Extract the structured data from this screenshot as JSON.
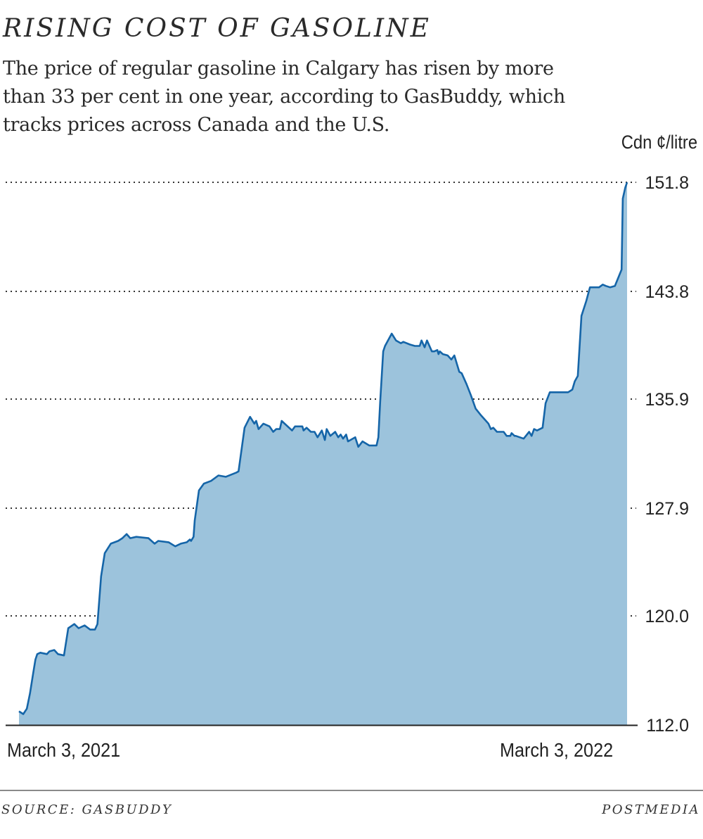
{
  "header": {
    "title": "RISING COST OF GASOLINE",
    "subtitle": "The price of regular gasoline in Calgary has risen by more than 33 per cent in one year, according to GasBuddy, which tracks prices across Canada and the U.S.",
    "unit_label": "Cdn ¢/litre"
  },
  "footer": {
    "source": "SOURCE: GASBUDDY",
    "credit": "POSTMEDIA"
  },
  "colors": {
    "line": "#1565a8",
    "fill": "#9cc3dc",
    "gridline": "#333333",
    "axis": "#222222",
    "text": "#222222"
  },
  "chart_data": {
    "type": "area",
    "title": "RISING COST OF GASOLINE",
    "subtitle": "The price of regular gasoline in Calgary has risen by more than 33 per cent in one year, according to GasBuddy, which tracks prices across Canada and the U.S.",
    "xlabel": "",
    "ylabel": "Cdn ¢/litre",
    "x_tick_labels": [
      "March 3, 2021",
      "March 3, 2022"
    ],
    "x_range": [
      "March 3, 2021",
      "March 3, 2022"
    ],
    "y_ticks": [
      112.0,
      120.0,
      127.9,
      135.9,
      143.8,
      151.8
    ],
    "y_tick_labels": [
      "112.0",
      "120.0",
      "127.9",
      "135.9",
      "143.8",
      "151.8"
    ],
    "ylim": [
      112.0,
      151.8
    ],
    "grid": "horizontal dotted",
    "legend": "none",
    "x_note": "x is fraction of the year from March 3, 2021 (0) to March 3, 2022 (1)",
    "series": [
      {
        "name": "Regular gasoline, Calgary",
        "points": [
          [
            0.0,
            113.0
          ],
          [
            0.007,
            112.8
          ],
          [
            0.013,
            113.2
          ],
          [
            0.018,
            114.3
          ],
          [
            0.023,
            115.7
          ],
          [
            0.027,
            116.8
          ],
          [
            0.03,
            117.2
          ],
          [
            0.035,
            117.3
          ],
          [
            0.046,
            117.2
          ],
          [
            0.05,
            117.4
          ],
          [
            0.058,
            117.5
          ],
          [
            0.064,
            117.2
          ],
          [
            0.074,
            117.1
          ],
          [
            0.081,
            119.1
          ],
          [
            0.091,
            119.4
          ],
          [
            0.098,
            119.1
          ],
          [
            0.108,
            119.3
          ],
          [
            0.117,
            119.0
          ],
          [
            0.125,
            119.0
          ],
          [
            0.129,
            119.4
          ],
          [
            0.135,
            122.9
          ],
          [
            0.141,
            124.6
          ],
          [
            0.151,
            125.3
          ],
          [
            0.163,
            125.5
          ],
          [
            0.17,
            125.7
          ],
          [
            0.177,
            126.0
          ],
          [
            0.183,
            125.7
          ],
          [
            0.193,
            125.8
          ],
          [
            0.213,
            125.7
          ],
          [
            0.223,
            125.3
          ],
          [
            0.229,
            125.5
          ],
          [
            0.246,
            125.4
          ],
          [
            0.257,
            125.1
          ],
          [
            0.266,
            125.3
          ],
          [
            0.276,
            125.4
          ],
          [
            0.281,
            125.6
          ],
          [
            0.283,
            125.5
          ],
          [
            0.287,
            125.8
          ],
          [
            0.289,
            127.0
          ],
          [
            0.296,
            129.2
          ],
          [
            0.304,
            129.7
          ],
          [
            0.316,
            129.9
          ],
          [
            0.328,
            130.3
          ],
          [
            0.34,
            130.2
          ],
          [
            0.357,
            130.5
          ],
          [
            0.361,
            130.6
          ],
          [
            0.371,
            133.8
          ],
          [
            0.38,
            134.6
          ],
          [
            0.387,
            134.1
          ],
          [
            0.39,
            134.3
          ],
          [
            0.394,
            133.7
          ],
          [
            0.402,
            134.1
          ],
          [
            0.412,
            133.9
          ],
          [
            0.418,
            133.5
          ],
          [
            0.423,
            133.7
          ],
          [
            0.429,
            133.7
          ],
          [
            0.432,
            134.3
          ],
          [
            0.449,
            133.6
          ],
          [
            0.454,
            133.9
          ],
          [
            0.466,
            133.9
          ],
          [
            0.468,
            133.6
          ],
          [
            0.473,
            133.8
          ],
          [
            0.48,
            133.5
          ],
          [
            0.486,
            133.5
          ],
          [
            0.491,
            133.1
          ],
          [
            0.498,
            133.6
          ],
          [
            0.503,
            132.9
          ],
          [
            0.506,
            133.7
          ],
          [
            0.512,
            133.2
          ],
          [
            0.52,
            133.5
          ],
          [
            0.525,
            133.1
          ],
          [
            0.529,
            133.3
          ],
          [
            0.533,
            133.0
          ],
          [
            0.538,
            133.3
          ],
          [
            0.541,
            132.8
          ],
          [
            0.553,
            133.1
          ],
          [
            0.558,
            132.4
          ],
          [
            0.565,
            132.8
          ],
          [
            0.576,
            132.5
          ],
          [
            0.588,
            132.5
          ],
          [
            0.591,
            133.1
          ],
          [
            0.594,
            135.7
          ],
          [
            0.599,
            139.4
          ],
          [
            0.602,
            139.8
          ],
          [
            0.613,
            140.7
          ],
          [
            0.62,
            140.2
          ],
          [
            0.628,
            140.0
          ],
          [
            0.632,
            140.1
          ],
          [
            0.643,
            139.9
          ],
          [
            0.651,
            139.8
          ],
          [
            0.659,
            139.8
          ],
          [
            0.662,
            140.2
          ],
          [
            0.667,
            139.7
          ],
          [
            0.671,
            140.2
          ],
          [
            0.679,
            139.4
          ],
          [
            0.683,
            139.4
          ],
          [
            0.688,
            139.5
          ],
          [
            0.69,
            139.2
          ],
          [
            0.692,
            139.4
          ],
          [
            0.697,
            139.2
          ],
          [
            0.705,
            139.1
          ],
          [
            0.711,
            138.8
          ],
          [
            0.716,
            139.1
          ],
          [
            0.724,
            137.9
          ],
          [
            0.728,
            137.8
          ],
          [
            0.736,
            137.0
          ],
          [
            0.743,
            136.2
          ],
          [
            0.751,
            135.2
          ],
          [
            0.76,
            134.7
          ],
          [
            0.772,
            134.1
          ],
          [
            0.776,
            133.7
          ],
          [
            0.78,
            133.8
          ],
          [
            0.786,
            133.5
          ],
          [
            0.797,
            133.5
          ],
          [
            0.802,
            133.2
          ],
          [
            0.808,
            133.2
          ],
          [
            0.81,
            133.4
          ],
          [
            0.815,
            133.2
          ],
          [
            0.817,
            133.2
          ],
          [
            0.83,
            133.0
          ],
          [
            0.839,
            133.5
          ],
          [
            0.843,
            133.2
          ],
          [
            0.847,
            133.7
          ],
          [
            0.852,
            133.6
          ],
          [
            0.861,
            133.8
          ],
          [
            0.866,
            135.6
          ],
          [
            0.873,
            136.4
          ],
          [
            0.903,
            136.4
          ],
          [
            0.91,
            136.6
          ],
          [
            0.914,
            137.2
          ],
          [
            0.919,
            137.6
          ],
          [
            0.925,
            142.0
          ],
          [
            0.933,
            143.1
          ],
          [
            0.939,
            144.1
          ],
          [
            0.954,
            144.1
          ],
          [
            0.96,
            144.3
          ],
          [
            0.965,
            144.2
          ],
          [
            0.972,
            144.1
          ],
          [
            0.98,
            144.2
          ],
          [
            0.991,
            145.4
          ],
          [
            0.993,
            150.6
          ],
          [
            0.997,
            151.4
          ],
          [
            1.0,
            151.8
          ]
        ]
      }
    ],
    "start_value": 113.0,
    "end_value": 151.8
  }
}
